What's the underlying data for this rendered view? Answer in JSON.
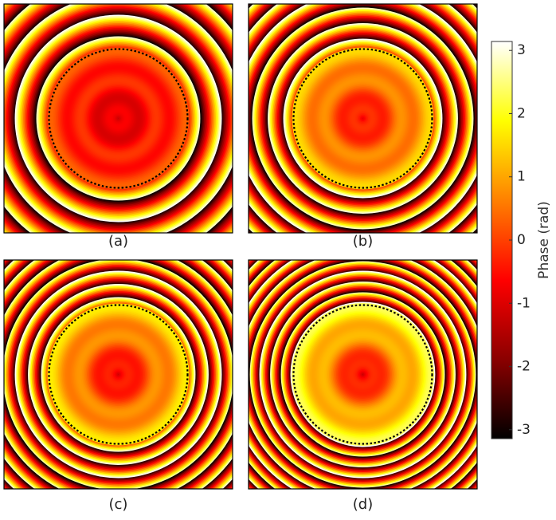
{
  "chart_data": {
    "type": "heatmap",
    "panels": [
      {
        "label": "(a)",
        "center_phase": -1.3,
        "ring_phase": 0.0,
        "fringe_density": 1.0
      },
      {
        "label": "(b)",
        "center_phase": -1.0,
        "ring_phase": 1.2,
        "fringe_density": 1.3
      },
      {
        "label": "(c)",
        "center_phase": -1.3,
        "ring_phase": 1.4,
        "fringe_density": 1.6
      },
      {
        "label": "(d)",
        "center_phase": -1.4,
        "ring_phase": 2.0,
        "fringe_density": 2.0
      }
    ],
    "colorbar": {
      "label": "Phase (rad)",
      "range": [
        -3.14159,
        3.14159
      ],
      "ticks": [
        3,
        2,
        1,
        0,
        -1,
        -2,
        -3
      ],
      "tick_labels": [
        "3",
        "2",
        "1",
        "0",
        "-1",
        "-2",
        "-3"
      ],
      "colormap": "hot"
    },
    "colormap_stops": [
      "#000000",
      "#8b0000",
      "#ff0000",
      "#ff8000",
      "#ffff00",
      "#ffffff"
    ]
  }
}
